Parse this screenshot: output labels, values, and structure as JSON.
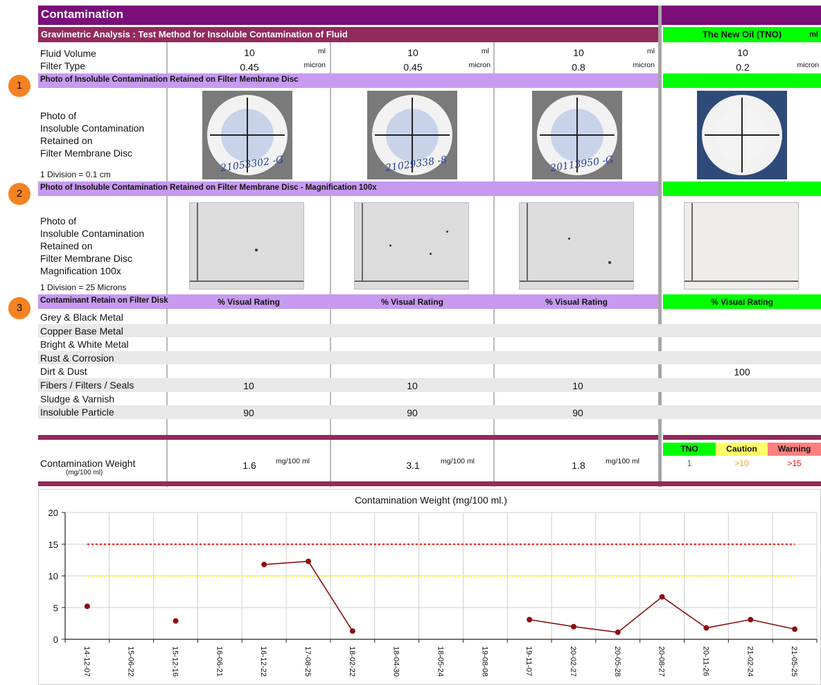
{
  "header": {
    "title": "Contamination",
    "subtitle": "Gravimetric Analysis : Test Method for Insoluble Contamination of Fluid",
    "tno_title": "The New Oil (TNO)",
    "tno_unit": "ml"
  },
  "rows": {
    "fluid_volume_label": "Fluid Volume",
    "filter_type_label": "Filter Type"
  },
  "samples": [
    {
      "fluid_volume": "10",
      "fluid_unit": "ml",
      "filter": "0.45",
      "filter_unit": "micron",
      "disc_code": "21053302 -G",
      "contamination_weight": "1.6",
      "weight_unit": "mg/100 ml"
    },
    {
      "fluid_volume": "10",
      "fluid_unit": "ml",
      "filter": "0.45",
      "filter_unit": "micron",
      "disc_code": "21029338 -8",
      "contamination_weight": "3.1",
      "weight_unit": "mg/100 ml"
    },
    {
      "fluid_volume": "10",
      "fluid_unit": "ml",
      "filter": "0.8",
      "filter_unit": "micron",
      "disc_code": "20113950 -G",
      "contamination_weight": "1.8",
      "weight_unit": "mg/100 ml"
    }
  ],
  "tno": {
    "fluid_volume": "10",
    "filter": "0.2",
    "filter_unit": "micron"
  },
  "sections": {
    "s1_label": "Photo of Insoluble Contamination Retained on Filter Membrane Disc",
    "s1_marker": "1",
    "s1_desc": [
      "Photo of",
      "Insoluble Contamination",
      "Retained on",
      "Filter Membrane Disc"
    ],
    "s1_note": "1 Division = 0.1 cm",
    "s2_label": "Photo of Insoluble Contamination Retained on Filter Membrane Disc - Magnification 100x",
    "s2_marker": "2",
    "s2_desc": [
      "Photo of",
      "Insoluble Contamination",
      "Retained on",
      "Filter Membrane Disc",
      "Magnification 100x"
    ],
    "s2_note": "1 Division = 25 Microns",
    "s3_label": "Contaminant Retain on Filter Disk",
    "s3_marker": "3",
    "rating_header": "% Visual Rating"
  },
  "contaminants": [
    {
      "name": "Grey & Black Metal",
      "values": [
        "",
        "",
        ""
      ],
      "tno": ""
    },
    {
      "name": "Copper Base Metal",
      "values": [
        "",
        "",
        ""
      ],
      "tno": ""
    },
    {
      "name": "Bright & White Metal",
      "values": [
        "",
        "",
        ""
      ],
      "tno": ""
    },
    {
      "name": "Rust & Corrosion",
      "values": [
        "",
        "",
        ""
      ],
      "tno": ""
    },
    {
      "name": "Dirt & Dust",
      "values": [
        "",
        "",
        ""
      ],
      "tno": "100"
    },
    {
      "name": "Fibers / Filters / Seals",
      "values": [
        "10",
        "10",
        "10"
      ],
      "tno": ""
    },
    {
      "name": "Sludge & Varnish",
      "values": [
        "",
        "",
        ""
      ],
      "tno": ""
    },
    {
      "name": "Insoluble Particle",
      "values": [
        "90",
        "90",
        "90"
      ],
      "tno": ""
    }
  ],
  "weight": {
    "label": "Contamination Weight",
    "sublabel": "(mg/100 ml)",
    "legend": [
      {
        "label": "TNO",
        "value": "1",
        "bg": "#00ff00",
        "fg": "#1a7a1a"
      },
      {
        "label": "Caution",
        "value": ">10",
        "bg": "#ffff66",
        "fg": "#f0a020"
      },
      {
        "label": "Warning",
        "value": ">15",
        "bg": "#ff7f7f",
        "fg": "#ff0000"
      }
    ]
  },
  "colors": {
    "title_bar": "#7a0f7a",
    "subtitle_bar": "#922b5c",
    "section_bar": "#c79af0",
    "tno_bar": "#00ff00",
    "series": "#8b1010",
    "warning_line": "#ff0000",
    "caution_line": "#ffff00",
    "marker": "#f58221"
  },
  "chart_data": {
    "type": "line",
    "title": "Contamination Weight (mg/100 ml.)",
    "xlabel": "",
    "ylabel": "",
    "ylim": [
      0,
      20
    ],
    "yticks": [
      0,
      5,
      10,
      15,
      20
    ],
    "grid": true,
    "categories": [
      "14-12-07",
      "15-06-22",
      "15-12-16",
      "16-06-21",
      "16-12-22",
      "17-08-25",
      "18-02-22",
      "18-04-30",
      "18-05-24",
      "19-08-08",
      "19-11-07",
      "20-02-27",
      "20-05-28",
      "20-08-27",
      "20-11-26",
      "21-02-24",
      "21-05-25"
    ],
    "series": [
      {
        "values": [
          5.2,
          null,
          2.9,
          null,
          11.8,
          12.3,
          1.3,
          null,
          null,
          null,
          3.1,
          2.0,
          1.1,
          6.7,
          1.8,
          3.1,
          1.6
        ]
      }
    ],
    "thresholds": [
      {
        "value": 15,
        "color": "#ff0000",
        "style": "dashed"
      },
      {
        "value": 10,
        "color": "#ffff00",
        "style": "dashed"
      }
    ]
  }
}
